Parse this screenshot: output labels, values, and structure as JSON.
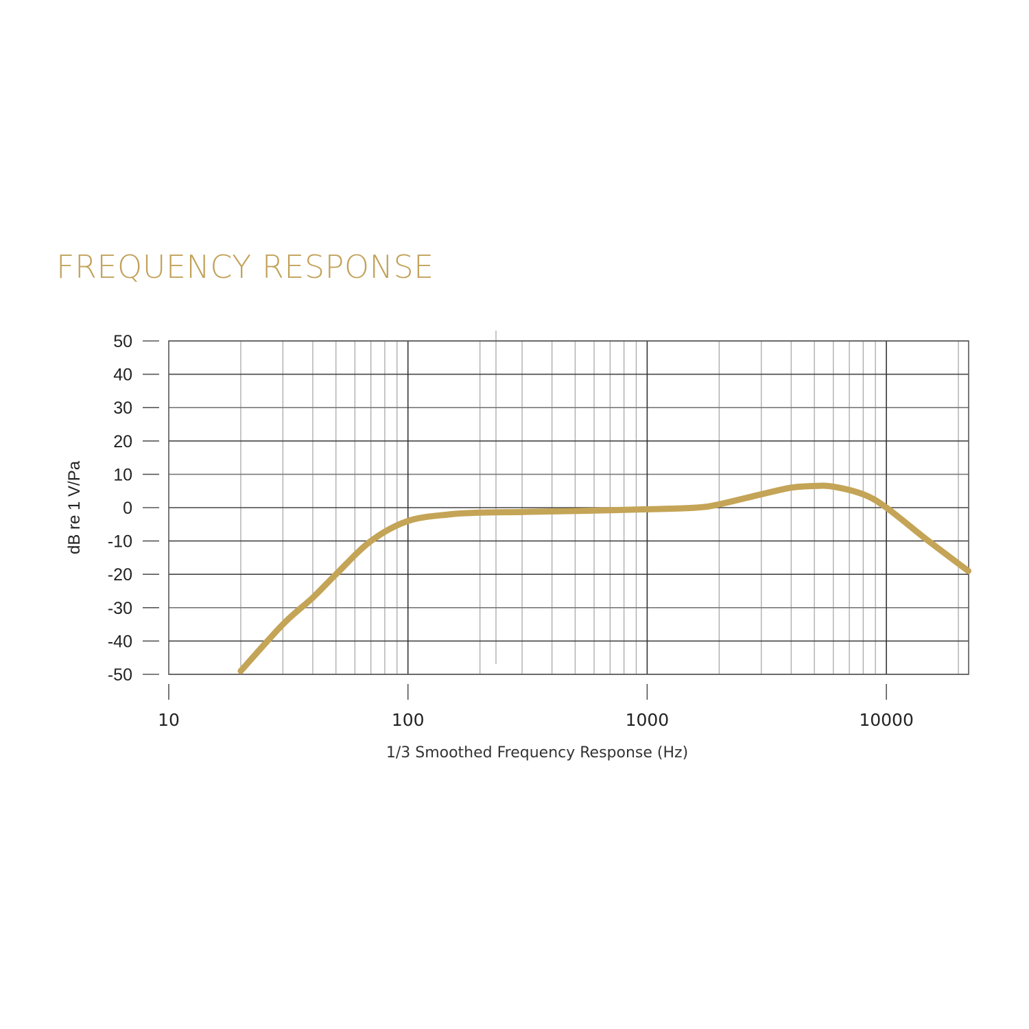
{
  "header": {
    "title": "FREQUENCY RESPONSE"
  },
  "colors": {
    "title": "#c2a25a",
    "curve": "#c4a456",
    "grid_major": "#333333",
    "grid_minor": "#a8a8a8"
  },
  "chart_data": {
    "type": "line",
    "title": "FREQUENCY RESPONSE",
    "xlabel": "1/3 Smoothed Frequency Response (Hz)",
    "ylabel": "dB re 1 V/Pa",
    "xscale": "log",
    "xlim": [
      10,
      22000
    ],
    "ylim": [
      -50,
      50
    ],
    "grid": true,
    "legend": "none",
    "x_ticks": [
      "10",
      "100",
      "1000",
      "10000"
    ],
    "y_ticks": [
      "50",
      "40",
      "30",
      "20",
      "10",
      "0",
      "-10",
      "-20",
      "-30",
      "-40",
      "-50"
    ],
    "series": [
      {
        "name": "Frequency Response",
        "x": [
          20,
          30,
          40,
          50,
          70,
          100,
          150,
          200,
          300,
          500,
          1000,
          1600,
          2000,
          3000,
          4000,
          5000,
          6000,
          8000,
          10000,
          15000,
          22000
        ],
        "y": [
          -49,
          -35,
          -27,
          -20,
          -10,
          -4,
          -2,
          -1.5,
          -1.3,
          -1,
          -0.5,
          0,
          1,
          4,
          6,
          6.5,
          6.3,
          4,
          0,
          -10,
          -19
        ]
      }
    ]
  }
}
